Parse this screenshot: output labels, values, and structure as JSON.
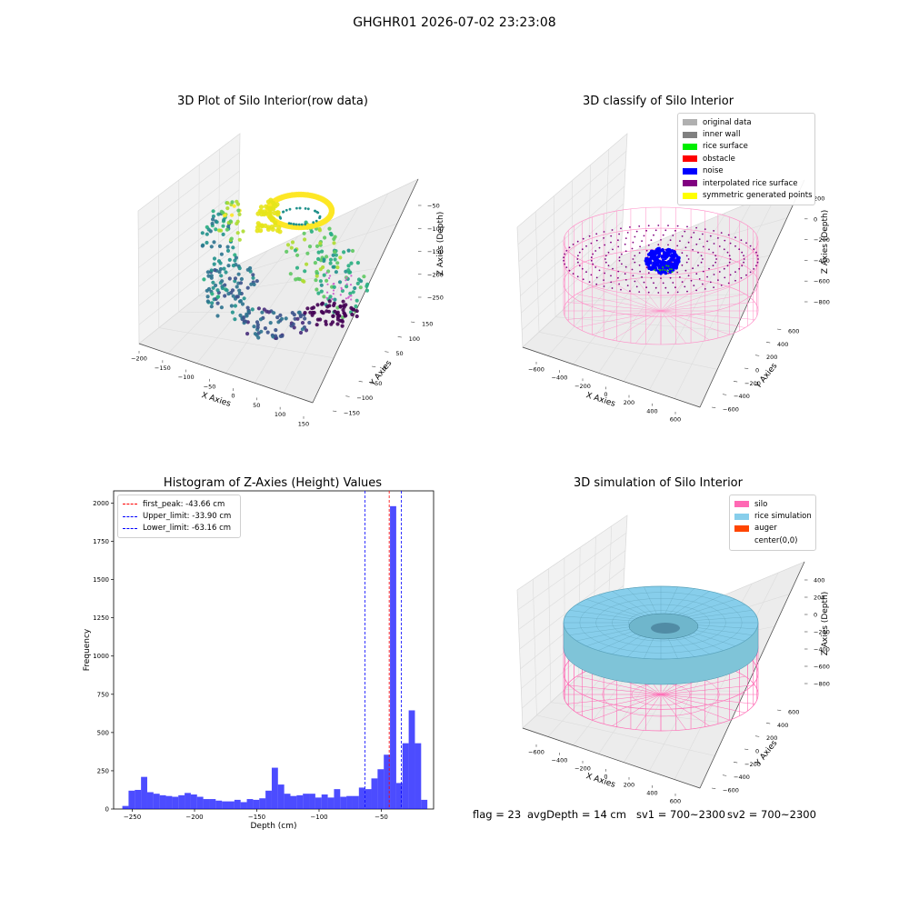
{
  "suptitle": "GHGHR01 2026-07-02 23:23:08",
  "footer": {
    "flag": "flag = 23",
    "avg_depth": "avgDepth = 14 cm",
    "sv1": "sv1 = 700~2300",
    "sv2": "sv2 = 700~2300"
  },
  "chart_data": [
    {
      "type": "scatter",
      "title": "3D Plot of Silo Interior(row data)",
      "xlabel": "X Axies",
      "ylabel": "Y Axies",
      "zlabel": "Z Axies (Depth)",
      "xticks": [
        "−200",
        "−150",
        "−100",
        "−50",
        "0",
        "50",
        "100",
        "150"
      ],
      "yticks": [
        "−150",
        "−100",
        "−50",
        "0",
        "50",
        "100",
        "150"
      ],
      "zticks": [
        "−50",
        "−100",
        "−150",
        "−200",
        "−250"
      ],
      "xlim": [
        -200,
        150
      ],
      "ylim": [
        -150,
        150
      ],
      "zlim": [
        -280,
        -30
      ],
      "colormap": "viridis",
      "description_points": [
        {
          "x": -160,
          "y": 20,
          "z": -30,
          "color": "#a0da39"
        },
        {
          "x": -50,
          "y": 60,
          "z": -40,
          "color": "#fde725"
        },
        {
          "x": 20,
          "y": 60,
          "z": -60,
          "color": "#5ec962"
        },
        {
          "x": 80,
          "y": 30,
          "z": -140,
          "color": "#21918c"
        },
        {
          "x": -150,
          "y": -40,
          "z": -200,
          "color": "#2c728e"
        },
        {
          "x": -40,
          "y": -120,
          "z": -260,
          "color": "#3b528b"
        },
        {
          "x": 60,
          "y": -40,
          "z": -250,
          "color": "#440154"
        }
      ]
    },
    {
      "type": "scatter",
      "title": "3D classify of Silo Interior",
      "xlabel": "X Axies",
      "ylabel": "Y Axies",
      "zlabel": "Z Axies (Depth)",
      "xticks": [
        "−600",
        "−400",
        "−200",
        "0",
        "200",
        "400",
        "600"
      ],
      "yticks": [
        "−600",
        "−400",
        "−200",
        "0",
        "200",
        "400",
        "600"
      ],
      "zticks": [
        "200",
        "0",
        "−200",
        "−400",
        "−600",
        "−800"
      ],
      "legend": [
        {
          "label": "original data",
          "color": "#b0b0b0"
        },
        {
          "label": "inner wall",
          "color": "#808080"
        },
        {
          "label": "rice surface",
          "color": "#00ee00"
        },
        {
          "label": "obstacle",
          "color": "#ff0000"
        },
        {
          "label": "noise",
          "color": "#0000ff"
        },
        {
          "label": "interpolated rice surface",
          "color": "#800080"
        },
        {
          "label": "symmetric generated points",
          "color": "#ffff00"
        }
      ],
      "legend_position": "top-right"
    },
    {
      "type": "bar",
      "title": "Histogram of Z-Axies (Height) Values",
      "xlabel": "Depth (cm)",
      "ylabel": "Frequency",
      "xlim": [
        -265,
        -8
      ],
      "ylim": [
        0,
        2080
      ],
      "xticks": [
        -250,
        -200,
        -150,
        -100,
        -50
      ],
      "yticks": [
        0,
        250,
        500,
        750,
        1000,
        1250,
        1500,
        1750,
        2000
      ],
      "bin_width": 5,
      "bins_start": [
        -258,
        -253,
        -248,
        -243,
        -238,
        -233,
        -228,
        -223,
        -218,
        -213,
        -208,
        -203,
        -198,
        -193,
        -188,
        -183,
        -178,
        -173,
        -168,
        -163,
        -158,
        -153,
        -148,
        -143,
        -138,
        -133,
        -128,
        -123,
        -118,
        -113,
        -108,
        -103,
        -98,
        -93,
        -88,
        -83,
        -78,
        -73,
        -68,
        -63,
        -58,
        -53,
        -48,
        -43,
        -38,
        -33,
        -28,
        -23,
        -18
      ],
      "values": [
        20,
        120,
        125,
        210,
        110,
        100,
        90,
        85,
        80,
        90,
        105,
        95,
        80,
        65,
        65,
        55,
        50,
        50,
        60,
        45,
        65,
        60,
        70,
        120,
        270,
        160,
        100,
        85,
        90,
        100,
        100,
        75,
        95,
        75,
        130,
        80,
        85,
        85,
        140,
        130,
        200,
        260,
        355,
        1980,
        170,
        430,
        645,
        430,
        60
      ],
      "color": "#0000ff",
      "vlines": [
        {
          "label": "first_peak: -43.66 cm",
          "x": -43.66,
          "color": "#ff0000"
        },
        {
          "label": "Upper_limit: -33.90 cm",
          "x": -33.9,
          "color": "#0000ff"
        },
        {
          "label": "Lower_limit: -63.16 cm",
          "x": -63.16,
          "color": "#0000ff"
        }
      ],
      "legend_position": "top-left"
    },
    {
      "type": "area",
      "title": "3D simulation of Silo Interior",
      "xlabel": "X Axies",
      "ylabel": "Y Axies",
      "zlabel": "Z Axies (Depth)",
      "xticks": [
        "−600",
        "−400",
        "−200",
        "0",
        "200",
        "400",
        "600"
      ],
      "yticks": [
        "−600",
        "−400",
        "−200",
        "0",
        "200",
        "400",
        "600"
      ],
      "zticks": [
        "400",
        "200",
        "0",
        "−200",
        "−400",
        "−600",
        "−800"
      ],
      "legend": [
        {
          "label": "silo",
          "color": "#ff69b4"
        },
        {
          "label": "rice simulation",
          "color": "#87ceeb"
        },
        {
          "label": "auger",
          "color": "#ff4500"
        },
        {
          "label": "center(0,0)",
          "color": ""
        }
      ],
      "legend_position": "top-right"
    }
  ]
}
